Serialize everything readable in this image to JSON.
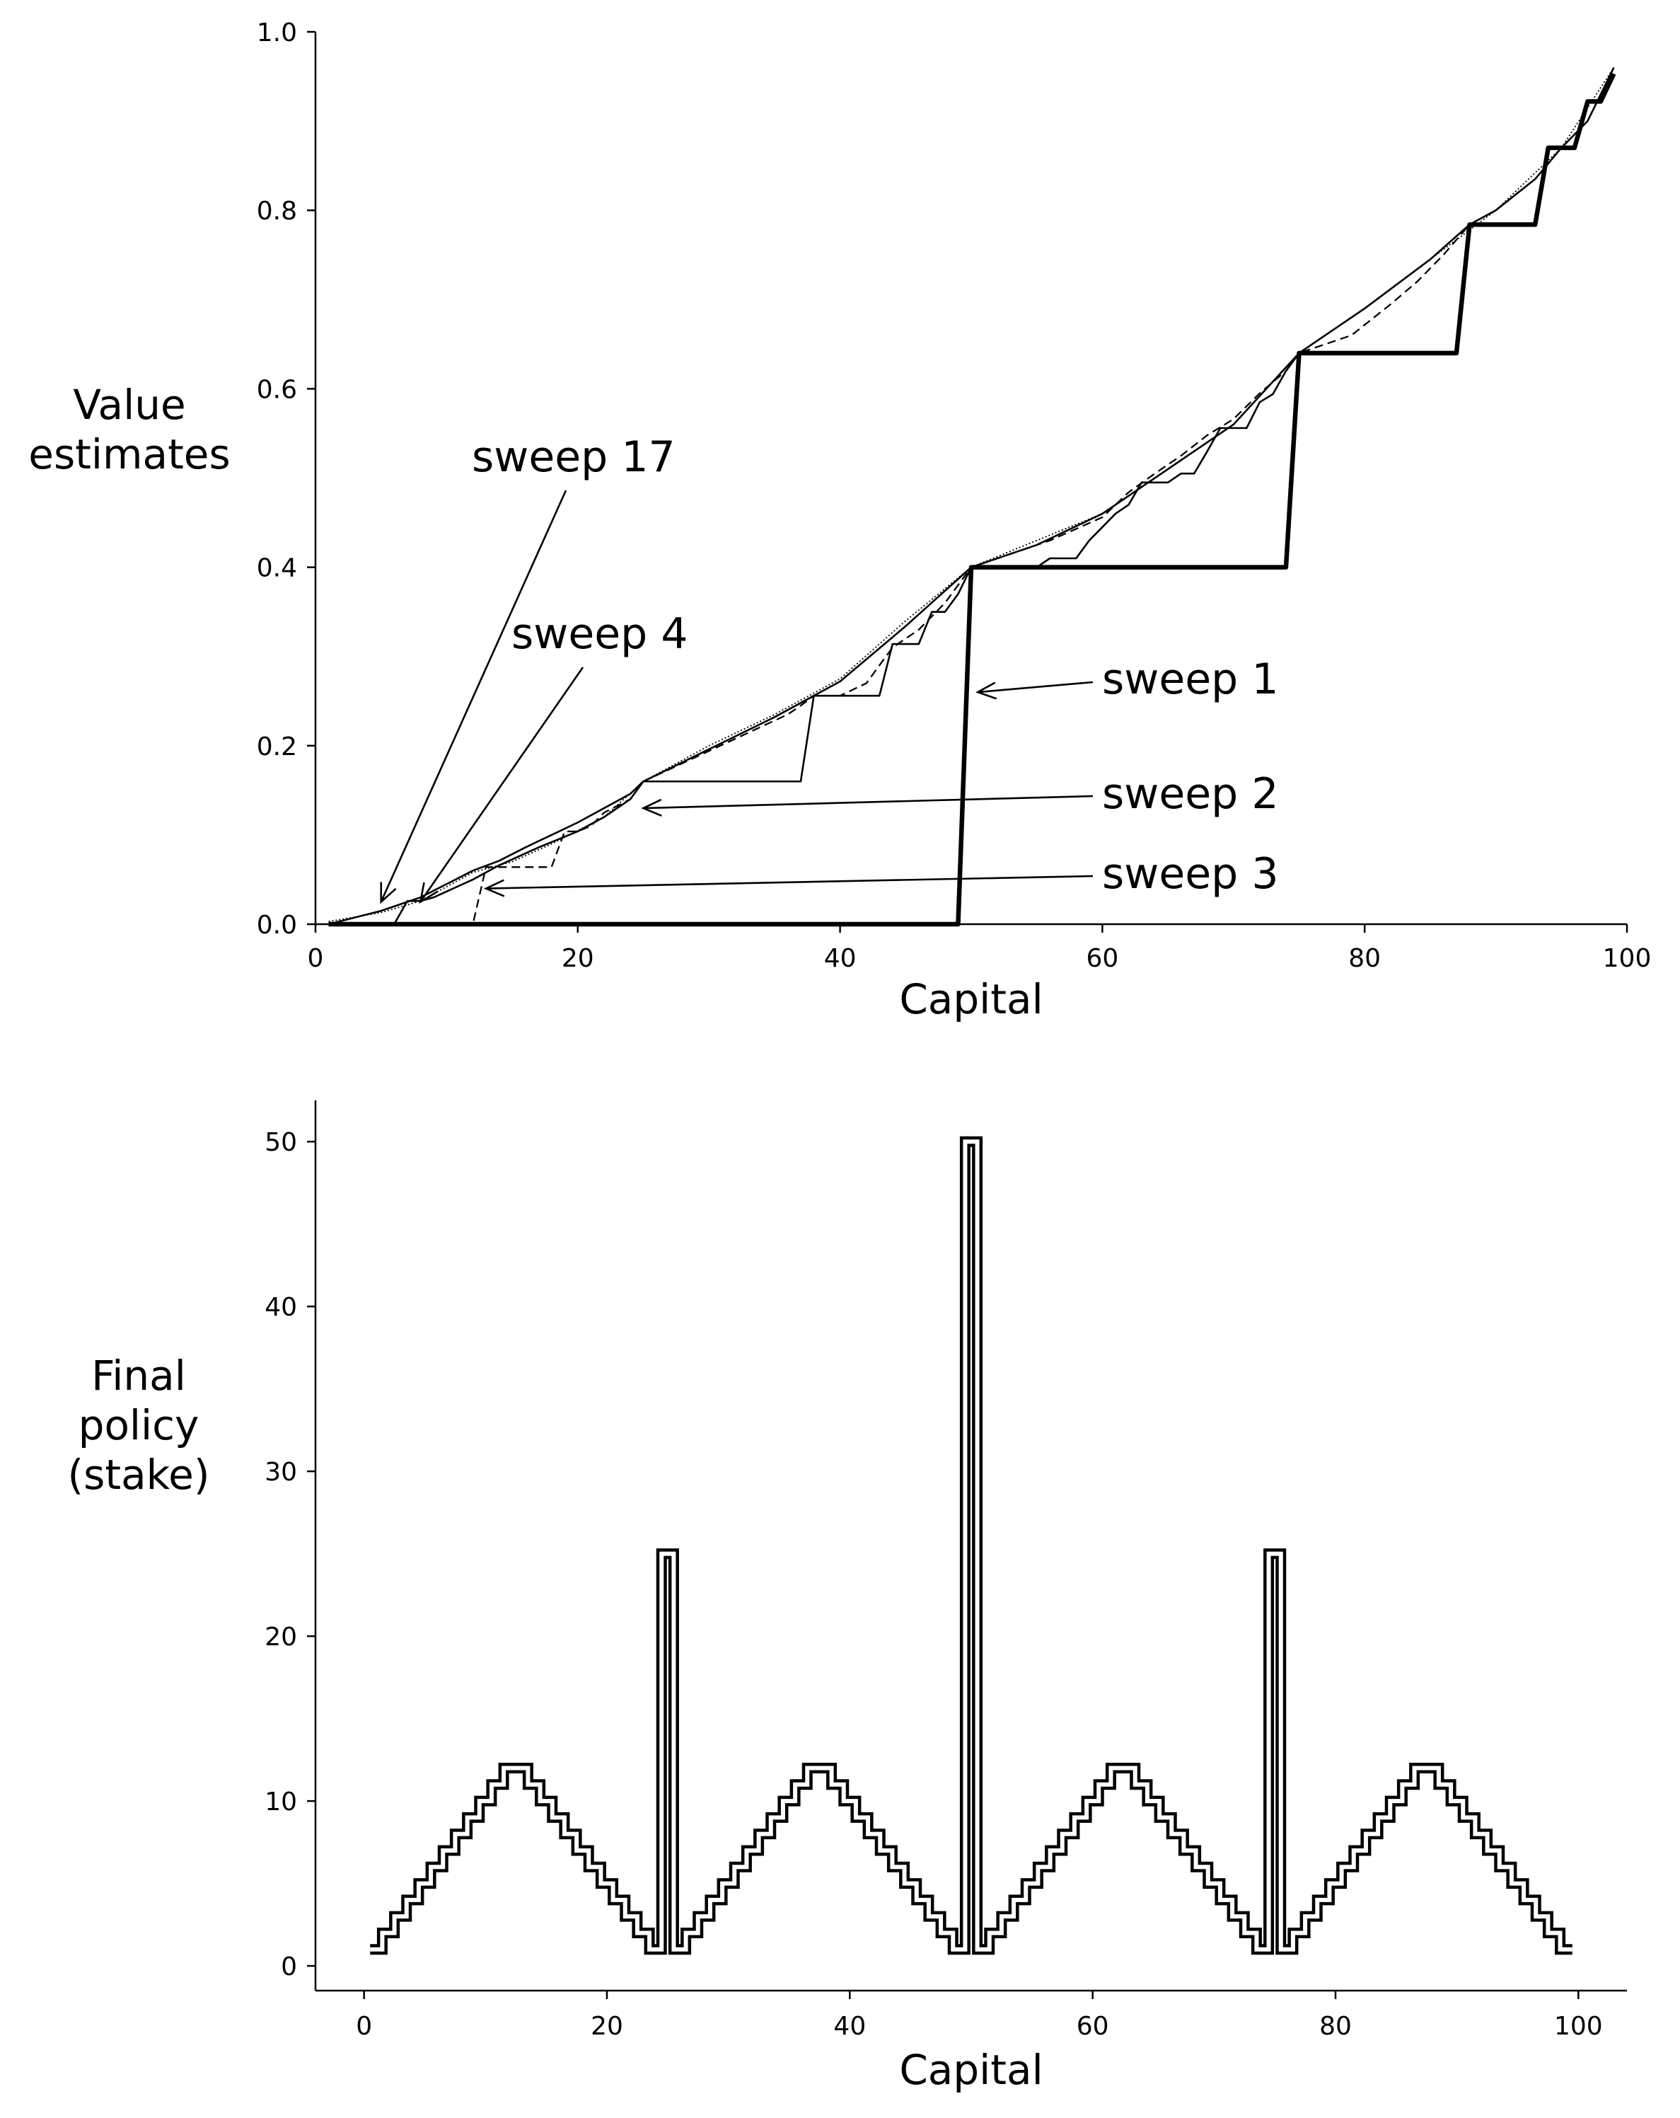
{
  "chart_data": [
    {
      "type": "line",
      "title": "",
      "xlabel": "Capital",
      "ylabel_lines": [
        "Value",
        "estimates"
      ],
      "xlim": [
        0,
        100
      ],
      "ylim": [
        0.0,
        1.0
      ],
      "xticks": [
        0,
        20,
        40,
        60,
        80,
        100
      ],
      "xtick_labels": [
        "0",
        "20",
        "40",
        "60",
        "80",
        "100"
      ],
      "yticks": [
        0.0,
        0.2,
        0.4,
        0.6,
        0.8,
        1.0
      ],
      "ytick_labels": [
        "0.0",
        "0.2",
        "0.4",
        "0.6",
        "0.8",
        "1.0"
      ],
      "grid": false,
      "legend": "none",
      "series": [
        {
          "name": "sweep 1",
          "style": "thick-solid",
          "x": [
            1,
            49,
            50,
            74,
            75,
            87,
            88,
            93,
            94,
            96,
            97,
            98,
            99
          ],
          "y": [
            0.0,
            0.0,
            0.4,
            0.4,
            0.64,
            0.64,
            0.784,
            0.784,
            0.87,
            0.87,
            0.922,
            0.922,
            0.953
          ]
        },
        {
          "name": "sweep 2",
          "style": "thin-solid",
          "x": [
            1,
            6,
            7,
            8,
            9,
            12,
            14,
            17,
            20,
            22,
            24,
            25,
            37,
            38,
            43,
            44,
            46,
            47,
            48,
            49,
            50,
            55,
            56,
            58,
            59,
            61,
            62,
            63,
            65,
            66,
            67,
            68,
            69,
            71,
            72,
            73,
            74,
            75
          ],
          "y": [
            0.0,
            0.0,
            0.026,
            0.026,
            0.03,
            0.05,
            0.066,
            0.086,
            0.104,
            0.12,
            0.14,
            0.16,
            0.16,
            0.256,
            0.256,
            0.314,
            0.314,
            0.35,
            0.35,
            0.37,
            0.4,
            0.4,
            0.41,
            0.41,
            0.43,
            0.46,
            0.47,
            0.495,
            0.495,
            0.505,
            0.505,
            0.53,
            0.556,
            0.556,
            0.585,
            0.594,
            0.62,
            0.64
          ]
        },
        {
          "name": "sweep 3",
          "style": "dashed",
          "x": [
            1,
            12,
            13,
            18,
            19,
            20,
            21,
            22,
            24,
            25,
            36,
            37,
            38,
            40,
            42,
            44,
            46,
            48,
            50,
            56,
            60,
            62,
            64,
            66,
            68,
            70,
            72,
            74,
            75,
            79,
            82,
            84,
            86,
            88
          ],
          "y": [
            0.0,
            0.0,
            0.064,
            0.064,
            0.104,
            0.104,
            0.11,
            0.125,
            0.14,
            0.16,
            0.235,
            0.245,
            0.256,
            0.256,
            0.27,
            0.31,
            0.33,
            0.36,
            0.4,
            0.43,
            0.456,
            0.484,
            0.505,
            0.525,
            0.548,
            0.566,
            0.595,
            0.62,
            0.64,
            0.66,
            0.695,
            0.72,
            0.75,
            0.784
          ]
        },
        {
          "name": "sweep 4",
          "style": "thin-solid",
          "x": [
            1,
            5,
            8,
            10,
            12,
            14,
            16,
            18,
            20,
            22,
            24,
            25,
            30,
            35,
            40,
            45,
            50,
            55,
            60,
            65,
            70,
            75,
            80,
            85,
            88,
            90,
            93,
            95,
            97,
            99
          ],
          "y": [
            0.0,
            0.015,
            0.03,
            0.045,
            0.06,
            0.071,
            0.086,
            0.1,
            0.114,
            0.13,
            0.146,
            0.16,
            0.196,
            0.232,
            0.272,
            0.334,
            0.4,
            0.425,
            0.46,
            0.51,
            0.56,
            0.64,
            0.69,
            0.745,
            0.784,
            0.8,
            0.835,
            0.87,
            0.9,
            0.96
          ]
        },
        {
          "name": "sweep 17",
          "style": "dotted",
          "x": [
            1,
            5,
            8,
            10,
            12,
            15,
            18,
            20,
            22,
            25,
            30,
            35,
            40,
            45,
            50,
            55,
            60,
            65,
            70,
            75,
            80,
            85,
            90,
            95,
            99
          ],
          "y": [
            0.003,
            0.013,
            0.026,
            0.042,
            0.058,
            0.07,
            0.09,
            0.105,
            0.12,
            0.16,
            0.2,
            0.235,
            0.275,
            0.34,
            0.4,
            0.43,
            0.46,
            0.51,
            0.56,
            0.64,
            0.69,
            0.745,
            0.8,
            0.87,
            0.96
          ]
        }
      ],
      "annotations": [
        {
          "text": "sweep 1",
          "target": [
            50.5,
            0.26
          ]
        },
        {
          "text": "sweep 2",
          "target": [
            25,
            0.13
          ]
        },
        {
          "text": "sweep 3",
          "target": [
            13,
            0.04
          ]
        },
        {
          "text": "sweep 4",
          "target": [
            8,
            0.025
          ]
        },
        {
          "text": "sweep 17",
          "target": [
            5,
            0.025
          ]
        }
      ]
    },
    {
      "type": "line",
      "title": "",
      "xlabel": "Capital",
      "ylabel_lines": [
        "Final",
        "policy",
        "(stake)"
      ],
      "xlim": [
        -4,
        104
      ],
      "ylim": [
        -1.5,
        52.5
      ],
      "xticks": [
        0,
        20,
        40,
        60,
        80,
        100
      ],
      "xtick_labels": [
        "0",
        "20",
        "40",
        "60",
        "80",
        "100"
      ],
      "yticks": [
        0,
        10,
        20,
        30,
        40,
        50
      ],
      "ytick_labels": [
        "0",
        "10",
        "20",
        "30",
        "40",
        "50"
      ],
      "grid": false,
      "legend": "none",
      "series": [
        {
          "name": "",
          "style": "double-outline-step",
          "x": [
            1,
            2,
            3,
            4,
            5,
            6,
            7,
            8,
            9,
            10,
            11,
            12,
            13,
            14,
            15,
            16,
            17,
            18,
            19,
            20,
            21,
            22,
            23,
            24,
            25,
            26,
            27,
            28,
            29,
            30,
            31,
            32,
            33,
            34,
            35,
            36,
            37,
            38,
            39,
            40,
            41,
            42,
            43,
            44,
            45,
            46,
            47,
            48,
            49,
            50,
            51,
            52,
            53,
            54,
            55,
            56,
            57,
            58,
            59,
            60,
            61,
            62,
            63,
            64,
            65,
            66,
            67,
            68,
            69,
            70,
            71,
            72,
            73,
            74,
            75,
            76,
            77,
            78,
            79,
            80,
            81,
            82,
            83,
            84,
            85,
            86,
            87,
            88,
            89,
            90,
            91,
            92,
            93,
            94,
            95,
            96,
            97,
            98,
            99
          ],
          "y": [
            1,
            2,
            3,
            4,
            5,
            6,
            7,
            8,
            9,
            10,
            11,
            12,
            12,
            11,
            10,
            9,
            8,
            7,
            6,
            5,
            4,
            3,
            2,
            1,
            25,
            1,
            2,
            3,
            4,
            5,
            6,
            7,
            8,
            9,
            10,
            11,
            12,
            12,
            11,
            10,
            9,
            8,
            7,
            6,
            5,
            4,
            3,
            2,
            1,
            50,
            1,
            2,
            3,
            4,
            5,
            6,
            7,
            8,
            9,
            10,
            11,
            12,
            12,
            11,
            10,
            9,
            8,
            7,
            6,
            5,
            4,
            3,
            2,
            1,
            25,
            1,
            2,
            3,
            4,
            5,
            6,
            7,
            8,
            9,
            10,
            11,
            12,
            12,
            11,
            10,
            9,
            8,
            7,
            6,
            5,
            4,
            3,
            2,
            1
          ]
        }
      ]
    }
  ]
}
